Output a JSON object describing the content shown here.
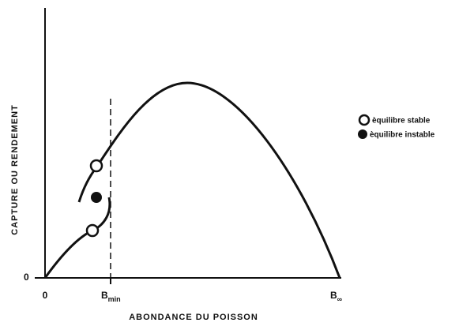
{
  "axes": {
    "y_label": "CAPTURE OU RENDEMENT",
    "x_label": "ABONDANCE DU POISSON",
    "y_origin": "0",
    "x_origin": "0",
    "b_min": {
      "base": "B",
      "sub": "min"
    },
    "b_inf": {
      "base": "B",
      "sub": "∞"
    }
  },
  "legend": {
    "stable": "èquilibre stable",
    "unstable": "èquilibre instable"
  }
}
